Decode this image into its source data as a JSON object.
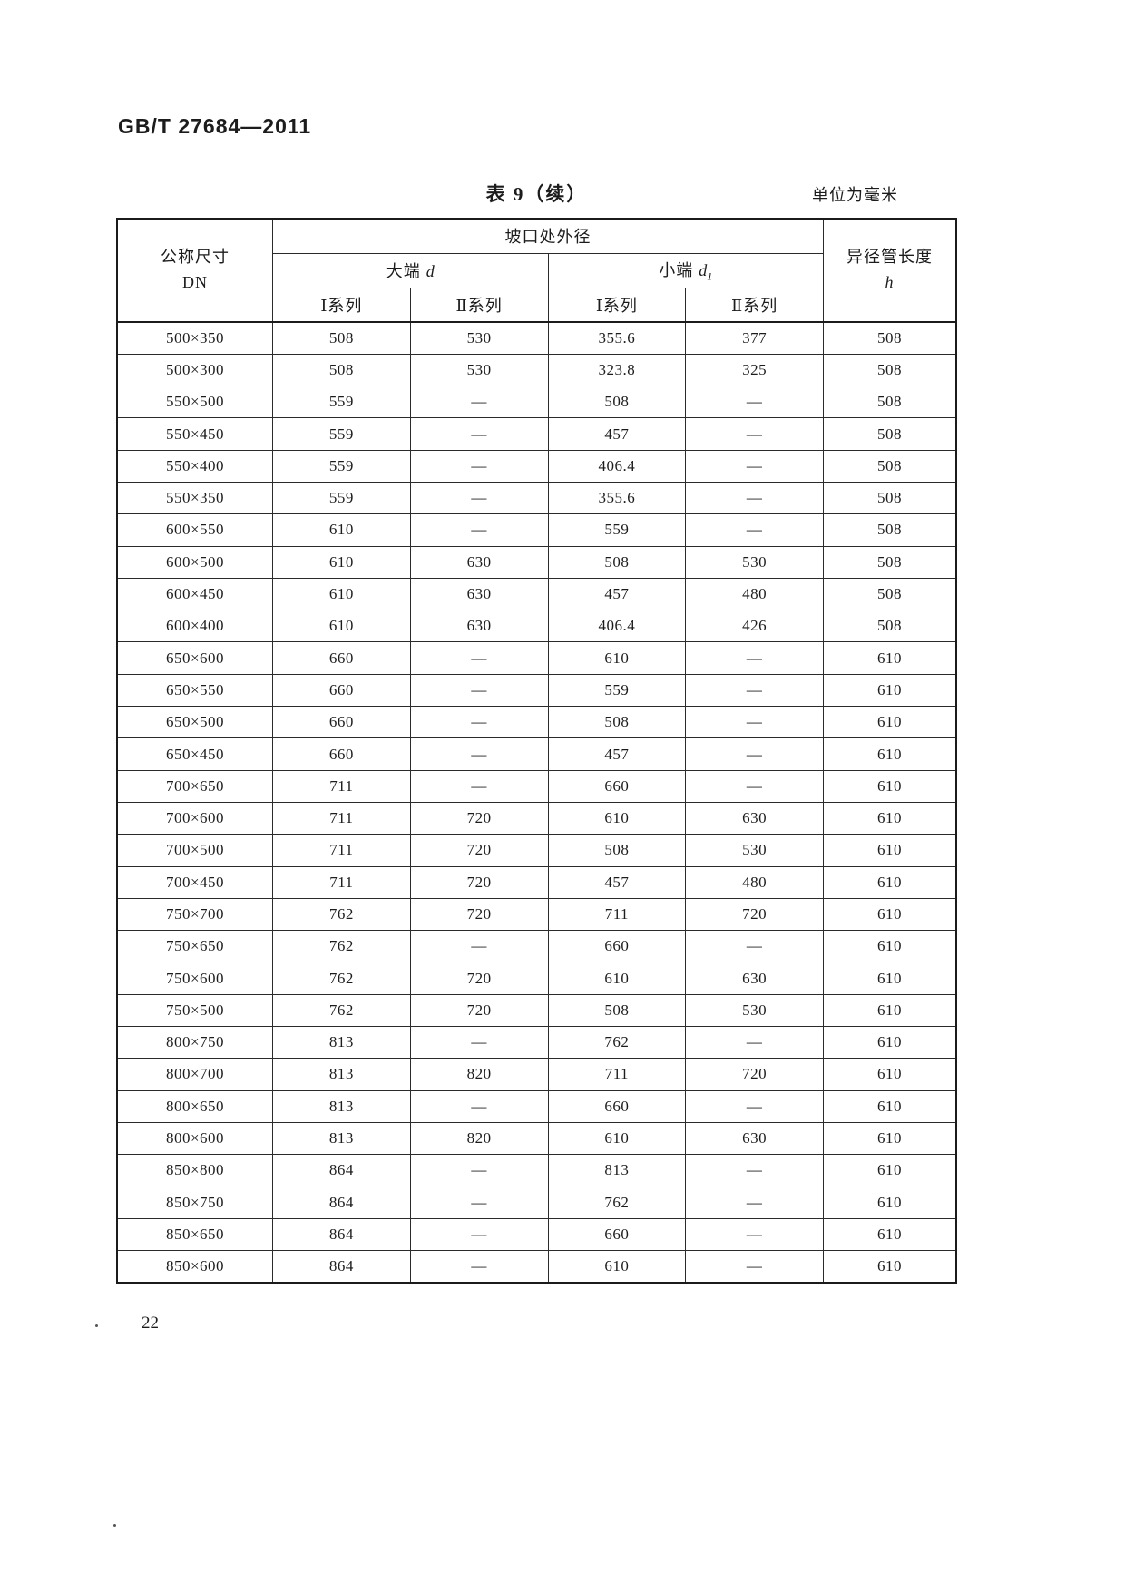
{
  "page": {
    "doc_number": "GB/T 27684—2011",
    "table_title": "表 9（续）",
    "unit_note": "单位为毫米",
    "page_number": "22"
  },
  "table": {
    "header": {
      "col_dn_line1": "公称尺寸",
      "col_dn_line2": "DN",
      "group_outer_diameter": "坡口处外径",
      "big_end_label": "大端",
      "big_end_symbol": "d",
      "small_end_label": "小端",
      "small_end_symbol": "d",
      "small_end_sub": "1",
      "series_1": "Ⅰ系列",
      "series_2": "Ⅱ系列",
      "col_length_line1": "异径管长度",
      "col_length_line2": "h"
    },
    "rows": [
      {
        "dn": "500×350",
        "big_i": "508",
        "big_ii": "530",
        "small_i": "355.6",
        "small_ii": "377",
        "h": "508"
      },
      {
        "dn": "500×300",
        "big_i": "508",
        "big_ii": "530",
        "small_i": "323.8",
        "small_ii": "325",
        "h": "508"
      },
      {
        "dn": "550×500",
        "big_i": "559",
        "big_ii": "—",
        "small_i": "508",
        "small_ii": "—",
        "h": "508"
      },
      {
        "dn": "550×450",
        "big_i": "559",
        "big_ii": "—",
        "small_i": "457",
        "small_ii": "—",
        "h": "508"
      },
      {
        "dn": "550×400",
        "big_i": "559",
        "big_ii": "—",
        "small_i": "406.4",
        "small_ii": "—",
        "h": "508"
      },
      {
        "dn": "550×350",
        "big_i": "559",
        "big_ii": "—",
        "small_i": "355.6",
        "small_ii": "—",
        "h": "508"
      },
      {
        "dn": "600×550",
        "big_i": "610",
        "big_ii": "—",
        "small_i": "559",
        "small_ii": "—",
        "h": "508"
      },
      {
        "dn": "600×500",
        "big_i": "610",
        "big_ii": "630",
        "small_i": "508",
        "small_ii": "530",
        "h": "508"
      },
      {
        "dn": "600×450",
        "big_i": "610",
        "big_ii": "630",
        "small_i": "457",
        "small_ii": "480",
        "h": "508"
      },
      {
        "dn": "600×400",
        "big_i": "610",
        "big_ii": "630",
        "small_i": "406.4",
        "small_ii": "426",
        "h": "508"
      },
      {
        "dn": "650×600",
        "big_i": "660",
        "big_ii": "—",
        "small_i": "610",
        "small_ii": "—",
        "h": "610"
      },
      {
        "dn": "650×550",
        "big_i": "660",
        "big_ii": "—",
        "small_i": "559",
        "small_ii": "—",
        "h": "610"
      },
      {
        "dn": "650×500",
        "big_i": "660",
        "big_ii": "—",
        "small_i": "508",
        "small_ii": "—",
        "h": "610"
      },
      {
        "dn": "650×450",
        "big_i": "660",
        "big_ii": "—",
        "small_i": "457",
        "small_ii": "—",
        "h": "610"
      },
      {
        "dn": "700×650",
        "big_i": "711",
        "big_ii": "—",
        "small_i": "660",
        "small_ii": "—",
        "h": "610"
      },
      {
        "dn": "700×600",
        "big_i": "711",
        "big_ii": "720",
        "small_i": "610",
        "small_ii": "630",
        "h": "610"
      },
      {
        "dn": "700×500",
        "big_i": "711",
        "big_ii": "720",
        "small_i": "508",
        "small_ii": "530",
        "h": "610"
      },
      {
        "dn": "700×450",
        "big_i": "711",
        "big_ii": "720",
        "small_i": "457",
        "small_ii": "480",
        "h": "610"
      },
      {
        "dn": "750×700",
        "big_i": "762",
        "big_ii": "720",
        "small_i": "711",
        "small_ii": "720",
        "h": "610"
      },
      {
        "dn": "750×650",
        "big_i": "762",
        "big_ii": "—",
        "small_i": "660",
        "small_ii": "—",
        "h": "610"
      },
      {
        "dn": "750×600",
        "big_i": "762",
        "big_ii": "720",
        "small_i": "610",
        "small_ii": "630",
        "h": "610"
      },
      {
        "dn": "750×500",
        "big_i": "762",
        "big_ii": "720",
        "small_i": "508",
        "small_ii": "530",
        "h": "610"
      },
      {
        "dn": "800×750",
        "big_i": "813",
        "big_ii": "—",
        "small_i": "762",
        "small_ii": "—",
        "h": "610"
      },
      {
        "dn": "800×700",
        "big_i": "813",
        "big_ii": "820",
        "small_i": "711",
        "small_ii": "720",
        "h": "610"
      },
      {
        "dn": "800×650",
        "big_i": "813",
        "big_ii": "—",
        "small_i": "660",
        "small_ii": "—",
        "h": "610"
      },
      {
        "dn": "800×600",
        "big_i": "813",
        "big_ii": "820",
        "small_i": "610",
        "small_ii": "630",
        "h": "610"
      },
      {
        "dn": "850×800",
        "big_i": "864",
        "big_ii": "—",
        "small_i": "813",
        "small_ii": "—",
        "h": "610"
      },
      {
        "dn": "850×750",
        "big_i": "864",
        "big_ii": "—",
        "small_i": "762",
        "small_ii": "—",
        "h": "610"
      },
      {
        "dn": "850×650",
        "big_i": "864",
        "big_ii": "—",
        "small_i": "660",
        "small_ii": "—",
        "h": "610"
      },
      {
        "dn": "850×600",
        "big_i": "864",
        "big_ii": "—",
        "small_i": "610",
        "small_ii": "—",
        "h": "610"
      }
    ]
  }
}
